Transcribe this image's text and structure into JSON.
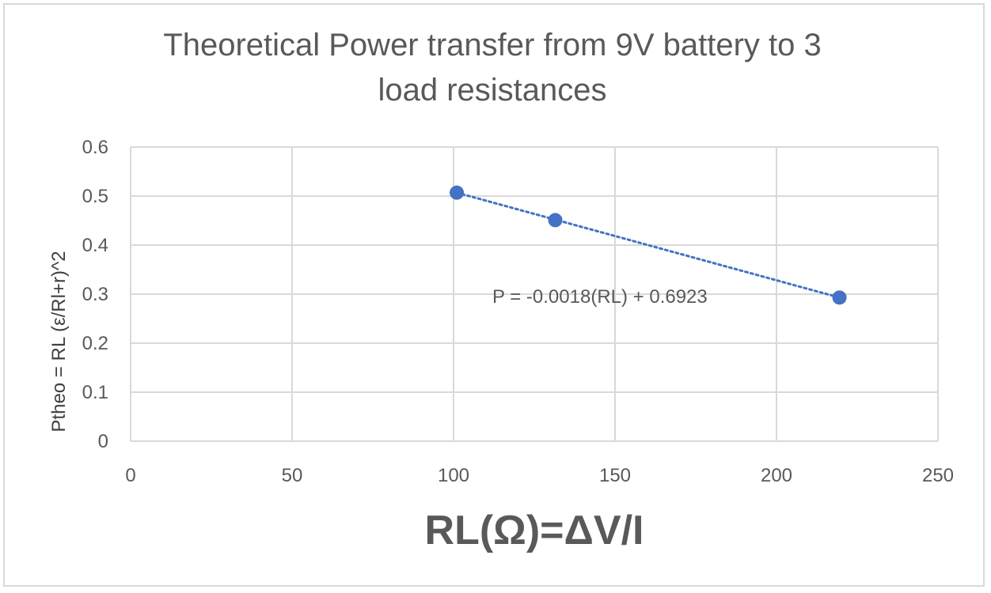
{
  "chart_data": {
    "type": "scatter",
    "title_lines": [
      "Theoretical Power transfer from 9V battery to 3",
      "load resistances"
    ],
    "xlabel": "RL(Ω)=ΔV/I",
    "ylabel": "Ptheo = RL (ε/Rl+r)^2",
    "xlim": [
      0,
      250
    ],
    "ylim": [
      0,
      0.6
    ],
    "xticks": [
      0,
      50,
      100,
      150,
      200,
      250
    ],
    "yticks": [
      0,
      0.1,
      0.2,
      0.3,
      0.4,
      0.5,
      0.6
    ],
    "grid": true,
    "series": [
      {
        "color": "#4472c4",
        "points": [
          {
            "x": 101,
            "y": 0.507
          },
          {
            "x": 131.5,
            "y": 0.451
          },
          {
            "x": 219.5,
            "y": 0.293
          }
        ]
      }
    ],
    "trendline": {
      "style": "dotted",
      "color": "#4472c4",
      "slope": -0.0018,
      "intercept": 0.6923,
      "x_range": [
        101,
        219.5
      ],
      "label": "P = -0.0018(RL) + 0.6923"
    }
  }
}
